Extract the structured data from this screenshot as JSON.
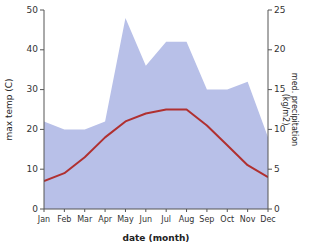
{
  "chart_data": {
    "type": "line",
    "xlabel": "date (month)",
    "ylabel": "max temp (C)",
    "y2label": "med. precipitation\n(kg/m2)",
    "categories": [
      "Jan",
      "Feb",
      "Mar",
      "Apr",
      "May",
      "Jun",
      "Jul",
      "Aug",
      "Sep",
      "Oct",
      "Nov",
      "Dec"
    ],
    "series": [
      {
        "type": "area",
        "axis": "y2",
        "color": "#b8c0e8",
        "values": [
          11,
          10,
          10,
          11,
          24,
          18,
          21,
          21,
          15,
          15,
          16,
          9
        ]
      },
      {
        "type": "line",
        "color": "#b03030",
        "values": [
          7,
          9,
          13,
          18,
          22,
          24,
          25,
          25,
          21,
          16,
          11,
          8
        ]
      }
    ],
    "ylim": [
      0,
      50
    ],
    "yticks": [
      0,
      10,
      20,
      30,
      40,
      50
    ],
    "y2lim": [
      0,
      25
    ],
    "y2ticks": [
      0,
      5,
      10,
      15,
      20,
      25
    ],
    "grid": false
  }
}
